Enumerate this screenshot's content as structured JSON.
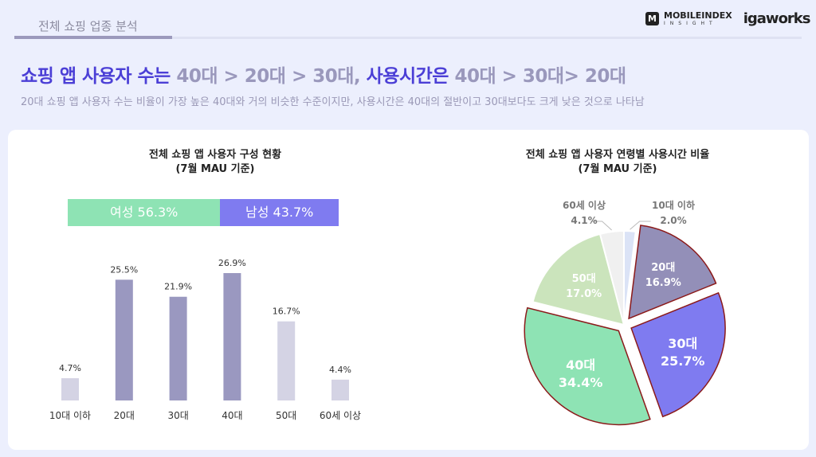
{
  "header": {
    "section": "전체 쇼핑 업종 분석",
    "logo_main": "MOBILEINDEX",
    "logo_sub": "INSIGHT",
    "logo_brand": "igaworks"
  },
  "headline": {
    "part_a": "쇼핑 앱 사용자 수는 ",
    "part_b": "40대 > 20대 > 30대, ",
    "part_c": "사용시간은 ",
    "part_d": "40대 > 30대> 20대"
  },
  "subtitle": "20대 쇼핑 앱 사용자 수는 비율이 가장 높은 40대와 거의 비슷한 수준이지만, 사용시간은 40대의 절반이고 30대보다도 크게 낮은 것으로 나타남",
  "gender": {
    "female_label": "여성 56.3%",
    "male_label": "남성 43.7%",
    "female": 56.3,
    "male": 43.7,
    "female_color": "#8ee3b4",
    "male_color": "#7f7bf0"
  },
  "chart_data": [
    {
      "type": "bar",
      "title": "전체 쇼핑 앱 사용자 구성 현황",
      "subtitle": "(7월 MAU 기준)",
      "categories": [
        "10대 이하",
        "20대",
        "30대",
        "40대",
        "50대",
        "60세 이상"
      ],
      "values": [
        4.7,
        25.5,
        21.9,
        26.9,
        16.7,
        4.4
      ],
      "labels": [
        "4.7%",
        "25.5%",
        "21.9%",
        "26.9%",
        "16.7%",
        "4.4%"
      ],
      "colors": [
        "#d4d3e4",
        "#9a98c0",
        "#9a98c0",
        "#9a98c0",
        "#d4d3e4",
        "#d4d3e4"
      ],
      "ylim": [
        0,
        30
      ],
      "grid": false
    },
    {
      "type": "pie",
      "title": "전체 쇼핑 앱 사용자 연령별 사용시간 비율",
      "subtitle": "(7월 MAU 기준)",
      "categories": [
        "10대 이하",
        "20대",
        "30대",
        "40대",
        "50대",
        "60세 이상"
      ],
      "values": [
        2.0,
        16.9,
        25.7,
        34.4,
        17.0,
        4.1
      ],
      "labels": [
        "2.0%",
        "16.9%",
        "25.7%",
        "34.4%",
        "17.0%",
        "4.1%"
      ],
      "colors": [
        "#dbe3f6",
        "#938fb8",
        "#7f7bf0",
        "#8ee3b4",
        "#cbe4bc",
        "#f0f0f0"
      ],
      "exploded": [
        false,
        true,
        true,
        true,
        false,
        false
      ],
      "highlight_border": "#8b1a1a"
    }
  ]
}
